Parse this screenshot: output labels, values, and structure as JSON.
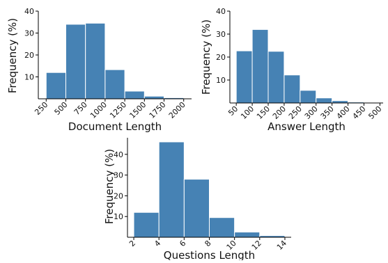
{
  "chart_data": [
    {
      "type": "bar",
      "xlabel": "Document Length",
      "ylabel": "Frequency (%)",
      "bar_color": "#4682b4",
      "xlim": [
        150,
        2100
      ],
      "ylim": [
        0,
        40
      ],
      "yticks": [
        "10",
        "20",
        "30",
        "40"
      ],
      "xticks": [
        "250",
        "500",
        "750",
        "1000",
        "1250",
        "1500",
        "1750",
        "2000"
      ],
      "bins": [
        {
          "start": 250,
          "end": 500,
          "value": 12
        },
        {
          "start": 500,
          "end": 750,
          "value": 34
        },
        {
          "start": 750,
          "end": 1000,
          "value": 34.5
        },
        {
          "start": 1000,
          "end": 1250,
          "value": 13.3
        },
        {
          "start": 1250,
          "end": 1500,
          "value": 3.5
        },
        {
          "start": 1500,
          "end": 1750,
          "value": 1.2
        },
        {
          "start": 1750,
          "end": 2000,
          "value": 0.5
        }
      ]
    },
    {
      "type": "bar",
      "xlabel": "Answer Length",
      "ylabel": "Frequency (%)",
      "bar_color": "#4682b4",
      "xlim": [
        30,
        510
      ],
      "ylim": [
        0,
        40
      ],
      "yticks": [
        "10",
        "20",
        "30",
        "40"
      ],
      "xticks": [
        "50",
        "100",
        "150",
        "200",
        "250",
        "300",
        "350",
        "400",
        "450",
        "500"
      ],
      "bins": [
        {
          "start": 50,
          "end": 100,
          "value": 22.7
        },
        {
          "start": 100,
          "end": 150,
          "value": 32
        },
        {
          "start": 150,
          "end": 200,
          "value": 22.5
        },
        {
          "start": 200,
          "end": 250,
          "value": 12.2
        },
        {
          "start": 250,
          "end": 300,
          "value": 5.5
        },
        {
          "start": 300,
          "end": 350,
          "value": 2.2
        },
        {
          "start": 350,
          "end": 400,
          "value": 1
        },
        {
          "start": 400,
          "end": 450,
          "value": 0.4
        }
      ]
    },
    {
      "type": "bar",
      "xlabel": "Questions Length",
      "ylabel": "Frequency (%)",
      "bar_color": "#4682b4",
      "xlim": [
        1.5,
        14.5
      ],
      "ylim": [
        0,
        48
      ],
      "yticks": [
        "10",
        "20",
        "30",
        "40"
      ],
      "xticks": [
        "2",
        "4",
        "6",
        "8",
        "10",
        "12",
        "14"
      ],
      "bins": [
        {
          "start": 2,
          "end": 4,
          "value": 12
        },
        {
          "start": 4,
          "end": 6,
          "value": 46
        },
        {
          "start": 6,
          "end": 8,
          "value": 28
        },
        {
          "start": 8,
          "end": 10,
          "value": 9.5
        },
        {
          "start": 10,
          "end": 12,
          "value": 2.5
        },
        {
          "start": 12,
          "end": 14,
          "value": 0.8
        }
      ]
    }
  ]
}
